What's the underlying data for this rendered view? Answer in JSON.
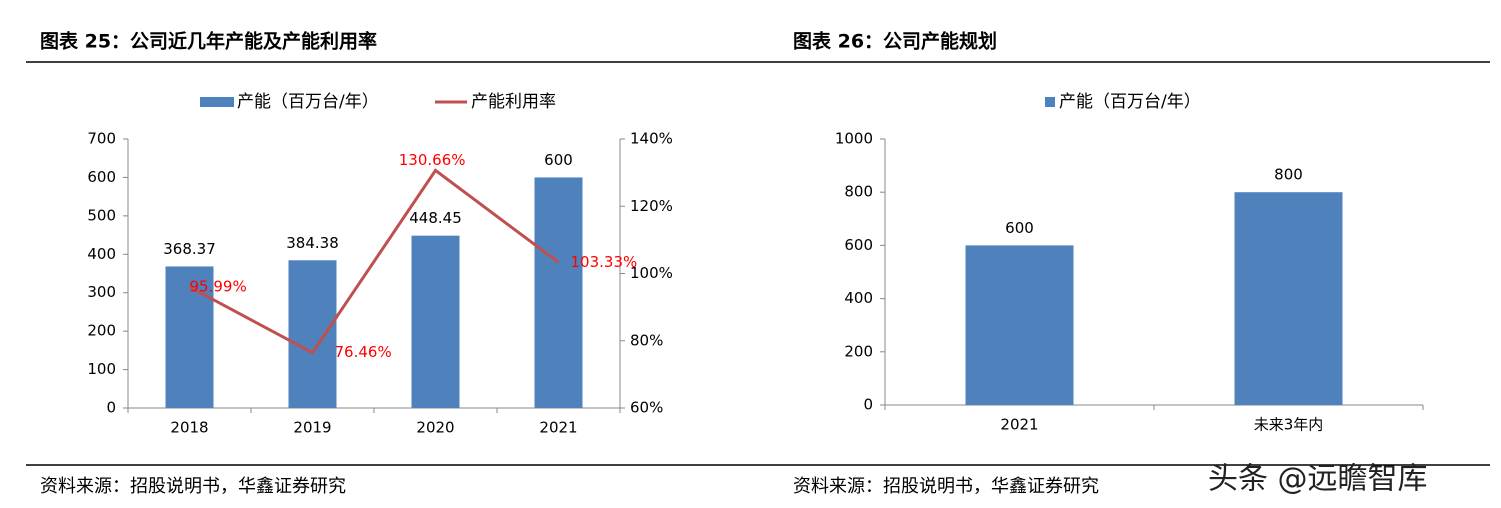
{
  "chart_data": [
    {
      "type": "bar",
      "title": "图表 25：公司近几年产能及产能利用率",
      "source": "资料来源：招股说明书，华鑫证券研究",
      "categories": [
        "2018",
        "2019",
        "2020",
        "2021"
      ],
      "series": [
        {
          "name": "产能（百万台/年）",
          "color": "#4f81bd",
          "values": [
            368.37,
            384.38,
            448.45,
            600
          ]
        },
        {
          "name": "产能利用率",
          "type": "line",
          "axis": "y2",
          "color": "#c0504d",
          "label_color": "#ff0000",
          "values": [
            95.99,
            76.46,
            130.66,
            103.33
          ],
          "value_labels": [
            "95.99%",
            "76.46%",
            "130.66%",
            "103.33%"
          ]
        }
      ],
      "ylim": [
        0,
        700
      ],
      "yticks": [
        0,
        100,
        200,
        300,
        400,
        500,
        600,
        700
      ],
      "y2lim": [
        60,
        140
      ],
      "y2ticks": [
        {
          "value": 60,
          "label": "60%"
        },
        {
          "value": 80,
          "label": "80%"
        },
        {
          "value": 100,
          "label": "100%"
        },
        {
          "value": 120,
          "label": "120%"
        },
        {
          "value": 140,
          "label": "140%"
        }
      ],
      "grid": false
    },
    {
      "type": "bar",
      "title": "图表 26：公司产能规划",
      "source": "资料来源：招股说明书，华鑫证券研究",
      "categories": [
        "2021",
        "未来3年内"
      ],
      "series": [
        {
          "name": "产能（百万台/年）",
          "color": "#4f81bd",
          "values": [
            600,
            800
          ]
        }
      ],
      "ylim": [
        0,
        1000
      ],
      "yticks": [
        0,
        200,
        400,
        600,
        800,
        1000
      ],
      "grid": false
    }
  ],
  "watermark": "头条 @远瞻智库"
}
